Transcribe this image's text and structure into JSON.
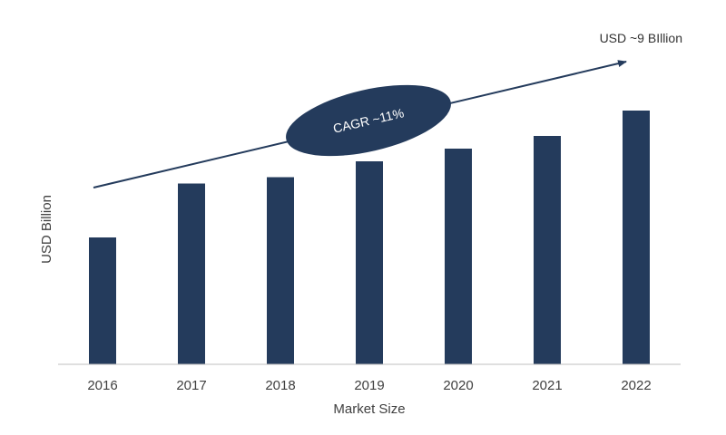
{
  "chart_data": {
    "type": "bar",
    "categories": [
      "2016",
      "2017",
      "2018",
      "2019",
      "2020",
      "2021",
      "2022"
    ],
    "values": [
      4.0,
      5.7,
      5.9,
      6.4,
      6.8,
      7.2,
      8.0
    ],
    "xlabel": "Market Size",
    "ylabel": "USD Billion",
    "ylim": [
      0,
      10
    ],
    "grid": false,
    "legend": "none",
    "bar_color": "#243b5c",
    "annotations": {
      "end_label": "USD ~9 BIllion",
      "cagr_label": "CAGR ~11%"
    }
  }
}
